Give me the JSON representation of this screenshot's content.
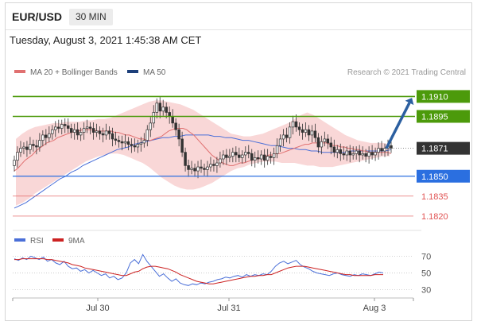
{
  "header": {
    "symbol": "EUR/USD",
    "timeframe": "30 MIN",
    "datetime": "Tuesday, August 3, 2021 1:45:38 AM CET"
  },
  "legend": {
    "bb_label": "MA 20 + Bollinger Bands",
    "ma_label": "MA 50",
    "credit": "Research © 2021 Trading Central"
  },
  "rsi_legend": {
    "rsi_label": "RSI",
    "ma_label": "9MA"
  },
  "colors": {
    "resistance": "#4c9a0b",
    "support_blue": "#2b6fe0",
    "support_red": "#e05252",
    "current": "#333333",
    "arrow": "#2b5fa0",
    "bollinger": "#f7c9c9",
    "ma20": "#e07070",
    "ma50": "#4a6fd8",
    "candle": "#333333",
    "rsi": "#4a6fd8",
    "rsi_ma": "#cc2222"
  },
  "chart_data": [
    {
      "type": "candlestick",
      "title": "EUR/USD",
      "ylim": [
        1.1811,
        1.1921
      ],
      "x_ticks": [
        "Jul 30",
        "Jul 31",
        "Aug 3"
      ],
      "levels": [
        {
          "label": "1.1910",
          "value": 1.191,
          "kind": "resistance"
        },
        {
          "label": "1.1895",
          "value": 1.1895,
          "kind": "resistance"
        },
        {
          "label": "1.1871",
          "value": 1.1871,
          "kind": "current"
        },
        {
          "label": "1.1850",
          "value": 1.185,
          "kind": "support"
        },
        {
          "label": "1.1835",
          "value": 1.1835,
          "kind": "support_minor"
        },
        {
          "label": "1.1820",
          "value": 1.182,
          "kind": "support_minor"
        }
      ],
      "close": [
        1.1862,
        1.1868,
        1.1871,
        1.1872,
        1.187,
        1.1874,
        1.1873,
        1.1872,
        1.1877,
        1.1881,
        1.1879,
        1.1882,
        1.1885,
        1.1887,
        1.1886,
        1.1889,
        1.1888,
        1.1886,
        1.1883,
        1.1885,
        1.1881,
        1.1883,
        1.1886,
        1.1887,
        1.1886,
        1.1883,
        1.1884,
        1.1882,
        1.1881,
        1.1884,
        1.1882,
        1.1878,
        1.1877,
        1.1876,
        1.1875,
        1.1876,
        1.1874,
        1.1873,
        1.1872,
        1.1874,
        1.1875,
        1.1877,
        1.1885,
        1.189,
        1.1898,
        1.1905,
        1.1899,
        1.1902,
        1.1898,
        1.1895,
        1.189,
        1.1885,
        1.1878,
        1.1868,
        1.1858,
        1.1855,
        1.1856,
        1.1854,
        1.1857,
        1.1856,
        1.1855,
        1.1857,
        1.1859,
        1.1858,
        1.186,
        1.1863,
        1.1866,
        1.1864,
        1.1865,
        1.1868,
        1.1866,
        1.1864,
        1.1866,
        1.1868,
        1.1867,
        1.1862,
        1.1864,
        1.1863,
        1.1866,
        1.1862,
        1.1865,
        1.1864,
        1.1867,
        1.1873,
        1.1878,
        1.1881,
        1.1879,
        1.1887,
        1.1891,
        1.1887,
        1.1885,
        1.1883,
        1.1885,
        1.1881,
        1.1884,
        1.1879,
        1.1872,
        1.1876,
        1.1878,
        1.1875,
        1.1872,
        1.1868,
        1.187,
        1.1867,
        1.1866,
        1.1869,
        1.1866,
        1.1867,
        1.1869,
        1.1866,
        1.1867,
        1.1865,
        1.1868,
        1.1866,
        1.1868,
        1.1871,
        1.1869,
        1.1871,
        1.1873,
        1.1871
      ],
      "ma20": [
        1.1854,
        1.1856,
        1.1859,
        1.1862,
        1.1864,
        1.1866,
        1.1869,
        1.1871,
        1.1873,
        1.1875,
        1.1876,
        1.1877,
        1.1879,
        1.188,
        1.1881,
        1.1882,
        1.1883,
        1.1884,
        1.1884,
        1.1885,
        1.1885,
        1.1885,
        1.1885,
        1.1884,
        1.1884,
        1.1884,
        1.1884,
        1.1884,
        1.1883,
        1.1883,
        1.1882,
        1.1881,
        1.1881,
        1.188,
        1.1879,
        1.1878,
        1.1878,
        1.1877,
        1.1877,
        1.1878,
        1.1879,
        1.188,
        1.1882,
        1.1884,
        1.1885,
        1.1886,
        1.1886,
        1.1886,
        1.1885,
        1.1883,
        1.1881,
        1.1878,
        1.1875,
        1.1872,
        1.1869,
        1.1866,
        1.1864,
        1.1862,
        1.186,
        1.1859,
        1.1858,
        1.1858,
        1.1859,
        1.186,
        1.186,
        1.1861,
        1.1862,
        1.1863,
        1.1863,
        1.1864,
        1.1865,
        1.1866,
        1.1866,
        1.1867,
        1.1867,
        1.1868,
        1.1869,
        1.187,
        1.1871,
        1.1872,
        1.1873,
        1.1874,
        1.1874,
        1.1875,
        1.1875,
        1.1875,
        1.1875,
        1.1875,
        1.1874,
        1.1873,
        1.1873,
        1.1872,
        1.1872,
        1.1871,
        1.1871,
        1.187,
        1.187,
        1.1869,
        1.1869,
        1.1868,
        1.1868,
        1.1868,
        1.1868,
        1.1868,
        1.1868,
        1.1867
      ],
      "bb_upper": [
        1.1878,
        1.1882,
        1.1885,
        1.1887,
        1.1888,
        1.1889,
        1.189,
        1.189,
        1.1891,
        1.1891,
        1.1891,
        1.1892,
        1.1892,
        1.1893,
        1.1893,
        1.1894,
        1.1896,
        1.1898,
        1.19,
        1.1902,
        1.1904,
        1.1906,
        1.1907,
        1.1907,
        1.1906,
        1.1905,
        1.1904,
        1.1902,
        1.19,
        1.1897,
        1.1894,
        1.1891,
        1.1888,
        1.1885,
        1.1882,
        1.1881,
        1.188,
        1.188,
        1.1881,
        1.1882,
        1.1884,
        1.1886,
        1.1888,
        1.189,
        1.1893,
        1.1896,
        1.1898,
        1.1896,
        1.1893,
        1.189,
        1.1887,
        1.1884,
        1.1881,
        1.1879,
        1.1877,
        1.1876,
        1.1875,
        1.1875,
        1.1875,
        1.1874
      ],
      "bb_lower": [
        1.1828,
        1.183,
        1.1833,
        1.1837,
        1.184,
        1.1843,
        1.1846,
        1.1849,
        1.1852,
        1.1855,
        1.1858,
        1.1861,
        1.1863,
        1.1865,
        1.1866,
        1.1867,
        1.1867,
        1.1866,
        1.1864,
        1.1862,
        1.186,
        1.1857,
        1.1853,
        1.1849,
        1.1846,
        1.1843,
        1.1841,
        1.184,
        1.184,
        1.1841,
        1.1843,
        1.1845,
        1.1848,
        1.1851,
        1.1854,
        1.1856,
        1.1857,
        1.1859,
        1.186,
        1.1861,
        1.1861,
        1.1861,
        1.186,
        1.186,
        1.186,
        1.1859,
        1.1858,
        1.1858,
        1.1857,
        1.1857,
        1.1857,
        1.1858,
        1.1859,
        1.186,
        1.1861,
        1.1862,
        1.1863,
        1.1864,
        1.1865,
        1.1865
      ],
      "ma50": [
        1.1826,
        1.1828,
        1.183,
        1.1833,
        1.1836,
        1.1839,
        1.1842,
        1.1845,
        1.1848,
        1.185,
        1.1853,
        1.1855,
        1.1858,
        1.186,
        1.1862,
        1.1864,
        1.1866,
        1.1868,
        1.187,
        1.1871,
        1.1872,
        1.1874,
        1.1875,
        1.1876,
        1.1877,
        1.1878,
        1.1879,
        1.1879,
        1.188,
        1.188,
        1.1881,
        1.1881,
        1.1881,
        1.1881,
        1.1881,
        1.188,
        1.188,
        1.1879,
        1.1879,
        1.1878,
        1.1877,
        1.1877,
        1.1876,
        1.1875,
        1.1874,
        1.1873,
        1.1873,
        1.1872,
        1.1871,
        1.1871,
        1.187,
        1.187,
        1.1869,
        1.1869,
        1.1868,
        1.1868,
        1.1868,
        1.1868,
        1.1868,
        1.1869,
        1.1869,
        1.1869,
        1.1869,
        1.1869,
        1.1869,
        1.1869,
        1.187
      ],
      "forecast": {
        "from": 1.1871,
        "to": 1.191
      }
    },
    {
      "type": "line",
      "title": "RSI",
      "ylim": [
        22,
        78
      ],
      "y_ticks": [
        70,
        50,
        30
      ],
      "series": [
        {
          "name": "RSI",
          "values": [
            67,
            65,
            68,
            66,
            70,
            68,
            66,
            69,
            64,
            66,
            62,
            60,
            64,
            58,
            55,
            56,
            52,
            54,
            50,
            53,
            50,
            47,
            49,
            44,
            46,
            42,
            44,
            50,
            62,
            66,
            61,
            72,
            64,
            58,
            52,
            46,
            49,
            44,
            40,
            43,
            38,
            36,
            35,
            37,
            36,
            38,
            37,
            39,
            40,
            42,
            43,
            45,
            44,
            46,
            47,
            45,
            48,
            46,
            48,
            47,
            49,
            48,
            52,
            58,
            62,
            64,
            61,
            63,
            65,
            60,
            57,
            55,
            52,
            50,
            49,
            48,
            47,
            49,
            50,
            48,
            47,
            46,
            48,
            47,
            49,
            48,
            47,
            49,
            51,
            50
          ]
        },
        {
          "name": "9MA",
          "values": [
            66,
            66,
            67,
            67,
            67,
            67,
            67,
            67,
            66,
            66,
            65,
            64,
            63,
            62,
            60,
            59,
            58,
            56,
            55,
            54,
            53,
            52,
            51,
            50,
            49,
            48,
            47,
            47,
            49,
            51,
            52,
            55,
            57,
            58,
            58,
            57,
            56,
            55,
            53,
            51,
            48,
            46,
            44,
            42,
            40,
            39,
            38,
            37,
            37,
            38,
            39,
            40,
            41,
            42,
            43,
            44,
            45,
            46,
            46,
            47,
            47,
            48,
            48,
            50,
            52,
            54,
            56,
            57,
            58,
            58,
            58,
            57,
            56,
            55,
            54,
            53,
            52,
            51,
            50,
            49,
            48,
            48,
            47,
            47,
            47,
            47,
            47,
            48,
            48,
            48
          ]
        }
      ]
    }
  ]
}
